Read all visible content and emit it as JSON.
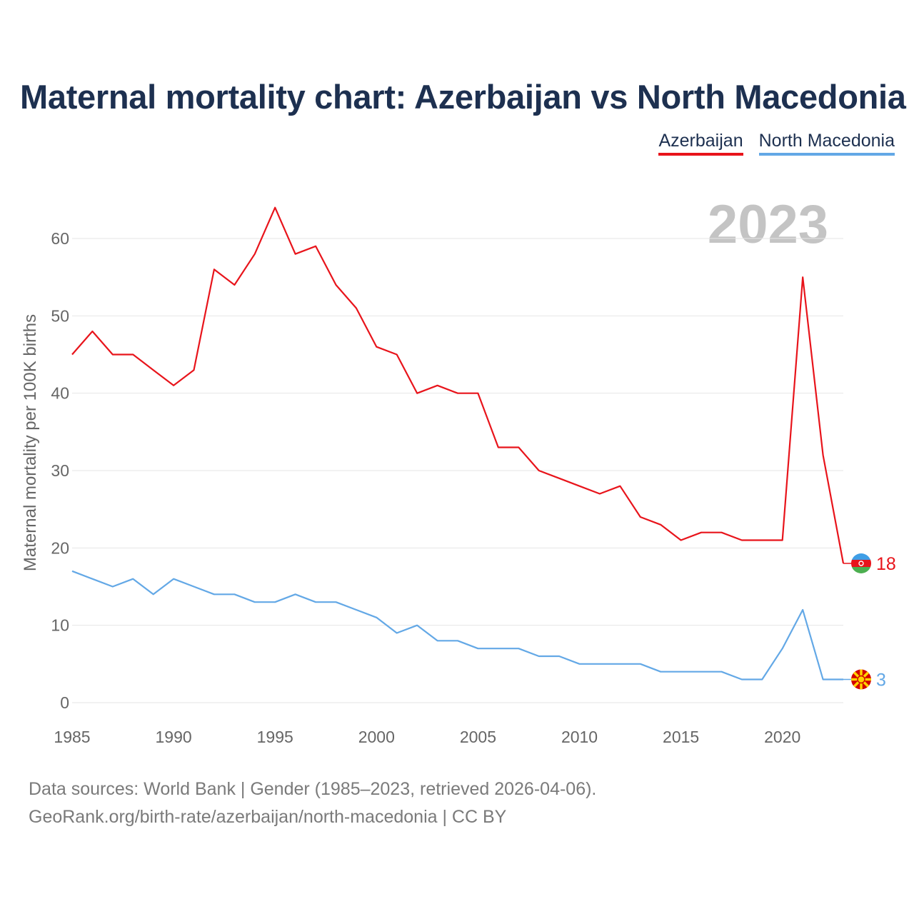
{
  "title": "Maternal mortality chart: Azerbaijan vs North Macedonia",
  "legend": [
    {
      "label": "Azerbaijan",
      "color": "#e8141b"
    },
    {
      "label": "North Macedonia",
      "color": "#63a8e6"
    }
  ],
  "year_watermark": "2023",
  "source": {
    "line1": "Data sources: World Bank | Gender (1985–2023, retrieved 2026-04-06).",
    "line2": "GeoRank.org/birth-rate/azerbaijan/north-macedonia | CC BY"
  },
  "chart_data": {
    "type": "line",
    "title": "Maternal mortality chart: Azerbaijan vs North Macedonia",
    "xlabel": "",
    "ylabel": "Maternal mortality per 100K births",
    "xlim": [
      1985,
      2023
    ],
    "ylim": [
      0,
      65
    ],
    "x_ticks": [
      1985,
      1990,
      1995,
      2000,
      2005,
      2010,
      2015,
      2020
    ],
    "y_ticks": [
      0,
      10,
      20,
      30,
      40,
      50,
      60
    ],
    "grid": true,
    "legend_position": "top-right",
    "x": [
      1985,
      1986,
      1987,
      1988,
      1989,
      1990,
      1991,
      1992,
      1993,
      1994,
      1995,
      1996,
      1997,
      1998,
      1999,
      2000,
      2001,
      2002,
      2003,
      2004,
      2005,
      2006,
      2007,
      2008,
      2009,
      2010,
      2011,
      2012,
      2013,
      2014,
      2015,
      2016,
      2017,
      2018,
      2019,
      2020,
      2021,
      2022,
      2023
    ],
    "series": [
      {
        "name": "Azerbaijan",
        "color": "#e8141b",
        "end_label": "18",
        "values": [
          45,
          48,
          45,
          45,
          43,
          41,
          43,
          56,
          54,
          58,
          64,
          58,
          59,
          54,
          51,
          46,
          45,
          40,
          41,
          40,
          40,
          33,
          33,
          30,
          29,
          28,
          27,
          28,
          24,
          23,
          21,
          22,
          22,
          21,
          21,
          21,
          55,
          32,
          18
        ]
      },
      {
        "name": "North Macedonia",
        "color": "#63a8e6",
        "end_label": "3",
        "values": [
          17,
          16,
          15,
          16,
          14,
          16,
          15,
          14,
          14,
          13,
          13,
          14,
          13,
          13,
          12,
          11,
          9,
          10,
          8,
          8,
          7,
          7,
          7,
          6,
          6,
          5,
          5,
          5,
          5,
          4,
          4,
          4,
          4,
          3,
          3,
          7,
          12,
          3,
          3
        ]
      }
    ]
  }
}
